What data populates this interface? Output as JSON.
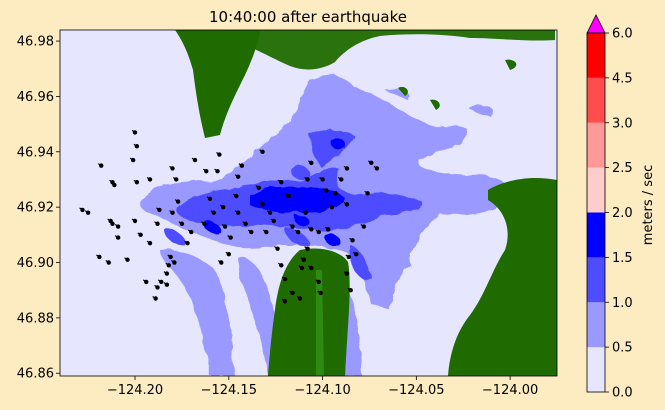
{
  "chart_data": {
    "type": "heatmap",
    "title": "10:40:00 after earthquake",
    "xlim": [
      -124.24,
      -123.975
    ],
    "ylim": [
      46.859,
      46.984
    ],
    "xticks": [
      -124.2,
      -124.15,
      -124.1,
      -124.05,
      -124.0
    ],
    "xtick_labels": [
      "−124.20",
      "−124.15",
      "−124.10",
      "−124.05",
      "−124.00"
    ],
    "yticks": [
      46.86,
      46.88,
      46.9,
      46.92,
      46.94,
      46.96,
      46.98
    ],
    "ytick_labels": [
      "46.86",
      "46.88",
      "46.90",
      "46.92",
      "46.94",
      "46.96",
      "46.98"
    ],
    "colorbar": {
      "label": "meters / sec",
      "levels": [
        0.0,
        0.5,
        1.0,
        1.5,
        2.0,
        2.5,
        3.0,
        4.5,
        6.0
      ],
      "tick_labels": [
        "0.0",
        "0.5",
        "1.0",
        "1.5",
        "2.0",
        "2.5",
        "3.0",
        "4.5",
        "6.0"
      ],
      "colors": [
        "#e6e6ff",
        "#9999ff",
        "#4d4dff",
        "#0000ff",
        "#ffcccc",
        "#ff9999",
        "#ff4d4d",
        "#ff0000"
      ],
      "extend_color": "#ff00ff"
    },
    "land_color": "#1f6b00",
    "ocean_color": "#e6e6ff",
    "drifters": [
      [
        -124.228,
        46.919
      ],
      [
        -124.225,
        46.918
      ],
      [
        -124.218,
        46.935
      ],
      [
        -124.212,
        46.929
      ],
      [
        -124.211,
        46.928
      ],
      [
        -124.213,
        46.915
      ],
      [
        -124.212,
        46.914
      ],
      [
        -124.209,
        46.913
      ],
      [
        -124.209,
        46.909
      ],
      [
        -124.219,
        46.902
      ],
      [
        -124.214,
        46.9
      ],
      [
        -124.2,
        46.947
      ],
      [
        -124.199,
        46.942
      ],
      [
        -124.201,
        46.937
      ],
      [
        -124.199,
        46.929
      ],
      [
        -124.2,
        46.915
      ],
      [
        -124.197,
        46.91
      ],
      [
        -124.204,
        46.901
      ],
      [
        -124.192,
        46.93
      ],
      [
        -124.187,
        46.919
      ],
      [
        -124.188,
        46.914
      ],
      [
        -124.192,
        46.907
      ],
      [
        -124.194,
        46.893
      ],
      [
        -124.188,
        46.891
      ],
      [
        -124.189,
        46.887
      ],
      [
        -124.181,
        46.902
      ],
      [
        -124.179,
        46.9
      ],
      [
        -124.182,
        46.899
      ],
      [
        -124.183,
        46.896
      ],
      [
        -124.183,
        46.892
      ],
      [
        -124.186,
        46.893
      ],
      [
        -124.18,
        46.934
      ],
      [
        -124.178,
        46.93
      ],
      [
        -124.177,
        46.922
      ],
      [
        -124.18,
        46.918
      ],
      [
        -124.175,
        46.914
      ],
      [
        -124.172,
        46.907
      ],
      [
        -124.17,
        46.911
      ],
      [
        -124.168,
        46.937
      ],
      [
        -124.162,
        46.933
      ],
      [
        -124.155,
        46.939
      ],
      [
        -124.156,
        46.933
      ],
      [
        -124.16,
        46.923
      ],
      [
        -124.158,
        46.918
      ],
      [
        -124.163,
        46.914
      ],
      [
        -124.153,
        46.92
      ],
      [
        -124.152,
        46.913
      ],
      [
        -124.149,
        46.909
      ],
      [
        -124.15,
        46.903
      ],
      [
        -124.154,
        46.9
      ],
      [
        -124.145,
        46.931
      ],
      [
        -124.143,
        46.935
      ],
      [
        -124.146,
        46.924
      ],
      [
        -124.145,
        46.918
      ],
      [
        -124.141,
        46.914
      ],
      [
        -124.138,
        46.911
      ],
      [
        -124.134,
        46.927
      ],
      [
        -124.132,
        46.921
      ],
      [
        -124.128,
        46.918
      ],
      [
        -124.126,
        46.915
      ],
      [
        -124.13,
        46.911
      ],
      [
        -124.124,
        46.905
      ],
      [
        -124.122,
        46.899
      ],
      [
        -124.12,
        46.894
      ],
      [
        -124.116,
        46.889
      ],
      [
        -124.12,
        46.886
      ],
      [
        -124.108,
        46.93
      ],
      [
        -124.106,
        46.936
      ],
      [
        -124.109,
        46.918
      ],
      [
        -124.106,
        46.912
      ],
      [
        -124.102,
        46.911
      ],
      [
        -124.108,
        46.905
      ],
      [
        -124.106,
        46.898
      ],
      [
        -124.102,
        46.893
      ],
      [
        -124.101,
        46.889
      ],
      [
        -124.111,
        46.898
      ],
      [
        -124.112,
        46.887
      ],
      [
        -124.1,
        46.93
      ],
      [
        -124.098,
        46.926
      ],
      [
        -124.095,
        46.92
      ],
      [
        -124.093,
        46.925
      ],
      [
        -124.09,
        46.93
      ],
      [
        -124.087,
        46.934
      ],
      [
        -124.087,
        46.921
      ],
      [
        -124.084,
        46.908
      ],
      [
        -124.086,
        46.902
      ],
      [
        -124.087,
        46.896
      ],
      [
        -124.085,
        46.89
      ],
      [
        -124.082,
        46.903
      ],
      [
        -124.074,
        46.936
      ],
      [
        -124.076,
        46.925
      ],
      [
        -124.078,
        46.913
      ],
      [
        -124.071,
        46.934
      ],
      [
        -124.11,
        46.901
      ],
      [
        -124.132,
        46.94
      ],
      [
        -124.122,
        46.929
      ],
      [
        -124.118,
        46.924
      ],
      [
        -124.116,
        46.913
      ],
      [
        -124.113,
        46.911
      ],
      [
        -124.097,
        46.912
      ]
    ]
  }
}
